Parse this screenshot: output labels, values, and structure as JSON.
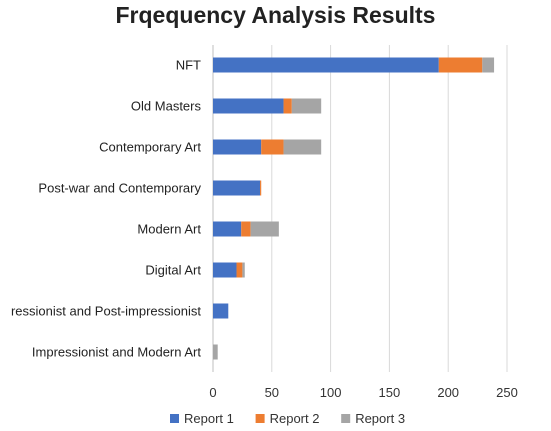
{
  "chart_data": {
    "type": "bar",
    "orientation": "horizontal",
    "stacked": true,
    "title": "Frqequency Analysis Results",
    "xlabel": "",
    "ylabel": "",
    "categories": [
      "NFT",
      "Old Masters",
      "Contemporary Art",
      "Post-war and Contemporary",
      "Modern Art",
      "Digital Art",
      "ressionist and Post-impressionist",
      "Impressionist and Modern Art"
    ],
    "series": [
      {
        "name": "Report 1",
        "color": "#4472C4",
        "values": [
          192,
          60,
          41,
          40,
          24,
          20,
          13,
          0
        ]
      },
      {
        "name": "Report 2",
        "color": "#ED7D31",
        "values": [
          37,
          7,
          19,
          1,
          8,
          5,
          0,
          0
        ]
      },
      {
        "name": "Report 3",
        "color": "#A5A5A5",
        "values": [
          10,
          25,
          32,
          0,
          24,
          2,
          0,
          4
        ]
      }
    ],
    "xlim": [
      0,
      250
    ],
    "xticks": [
      0,
      50,
      100,
      150,
      200,
      250
    ],
    "grid": true,
    "legend": "bottom"
  }
}
